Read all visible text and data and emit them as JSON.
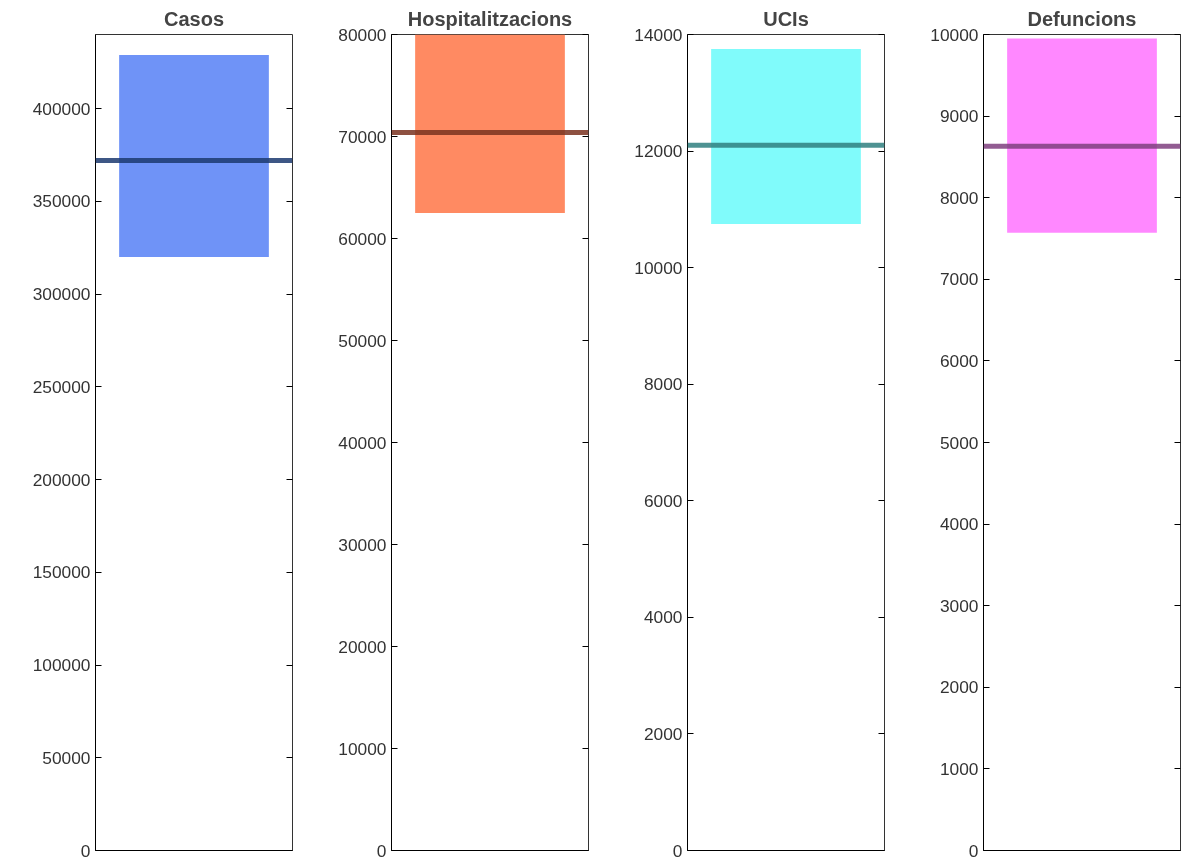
{
  "chart_data": [
    {
      "type": "bar",
      "title": "Casos",
      "categories": [
        null
      ],
      "base": [
        320000
      ],
      "values": [
        109000
      ],
      "color": "#6f93f7",
      "ylim": [
        0,
        440000
      ],
      "yticks": [
        0,
        50000,
        100000,
        150000,
        200000,
        250000,
        300000,
        350000,
        400000
      ],
      "tick_labels": "y",
      "grid": false,
      "ref_lines": [
        {
          "axis": "y",
          "value": 372000,
          "color": "#1c3a70"
        }
      ]
    },
    {
      "type": "bar",
      "title": "Hospitalitzacions",
      "categories": [
        null
      ],
      "base": [
        62500
      ],
      "values": [
        17500
      ],
      "color": "#ff8a62",
      "ylim": [
        0,
        80000
      ],
      "yticks": [
        0,
        10000,
        20000,
        30000,
        40000,
        50000,
        60000,
        70000,
        80000
      ],
      "tick_labels": "y",
      "grid": false,
      "ref_lines": [
        {
          "axis": "y",
          "value": 70400,
          "color": "#7a3220"
        }
      ]
    },
    {
      "type": "bar",
      "title": "UCIs",
      "categories": [
        null
      ],
      "base": [
        10750
      ],
      "values": [
        3000
      ],
      "color": "#80fbfb",
      "ylim": [
        0,
        14000
      ],
      "yticks": [
        0,
        2000,
        4000,
        6000,
        8000,
        10000,
        12000,
        14000
      ],
      "tick_labels": "y",
      "grid": false,
      "ref_lines": [
        {
          "axis": "y",
          "value": 12100,
          "color": "#2f7f7f"
        }
      ]
    },
    {
      "type": "bar",
      "title": "Defuncions",
      "categories": [
        null
      ],
      "base": [
        7570
      ],
      "values": [
        2380
      ],
      "color": "#ff88ff",
      "ylim": [
        0,
        10000
      ],
      "yticks": [
        0,
        1000,
        2000,
        3000,
        4000,
        5000,
        6000,
        7000,
        8000,
        9000,
        10000
      ],
      "tick_labels": "y",
      "grid": false,
      "ref_lines": [
        {
          "axis": "y",
          "value": 8630,
          "color": "#7f3f7f"
        }
      ]
    }
  ]
}
